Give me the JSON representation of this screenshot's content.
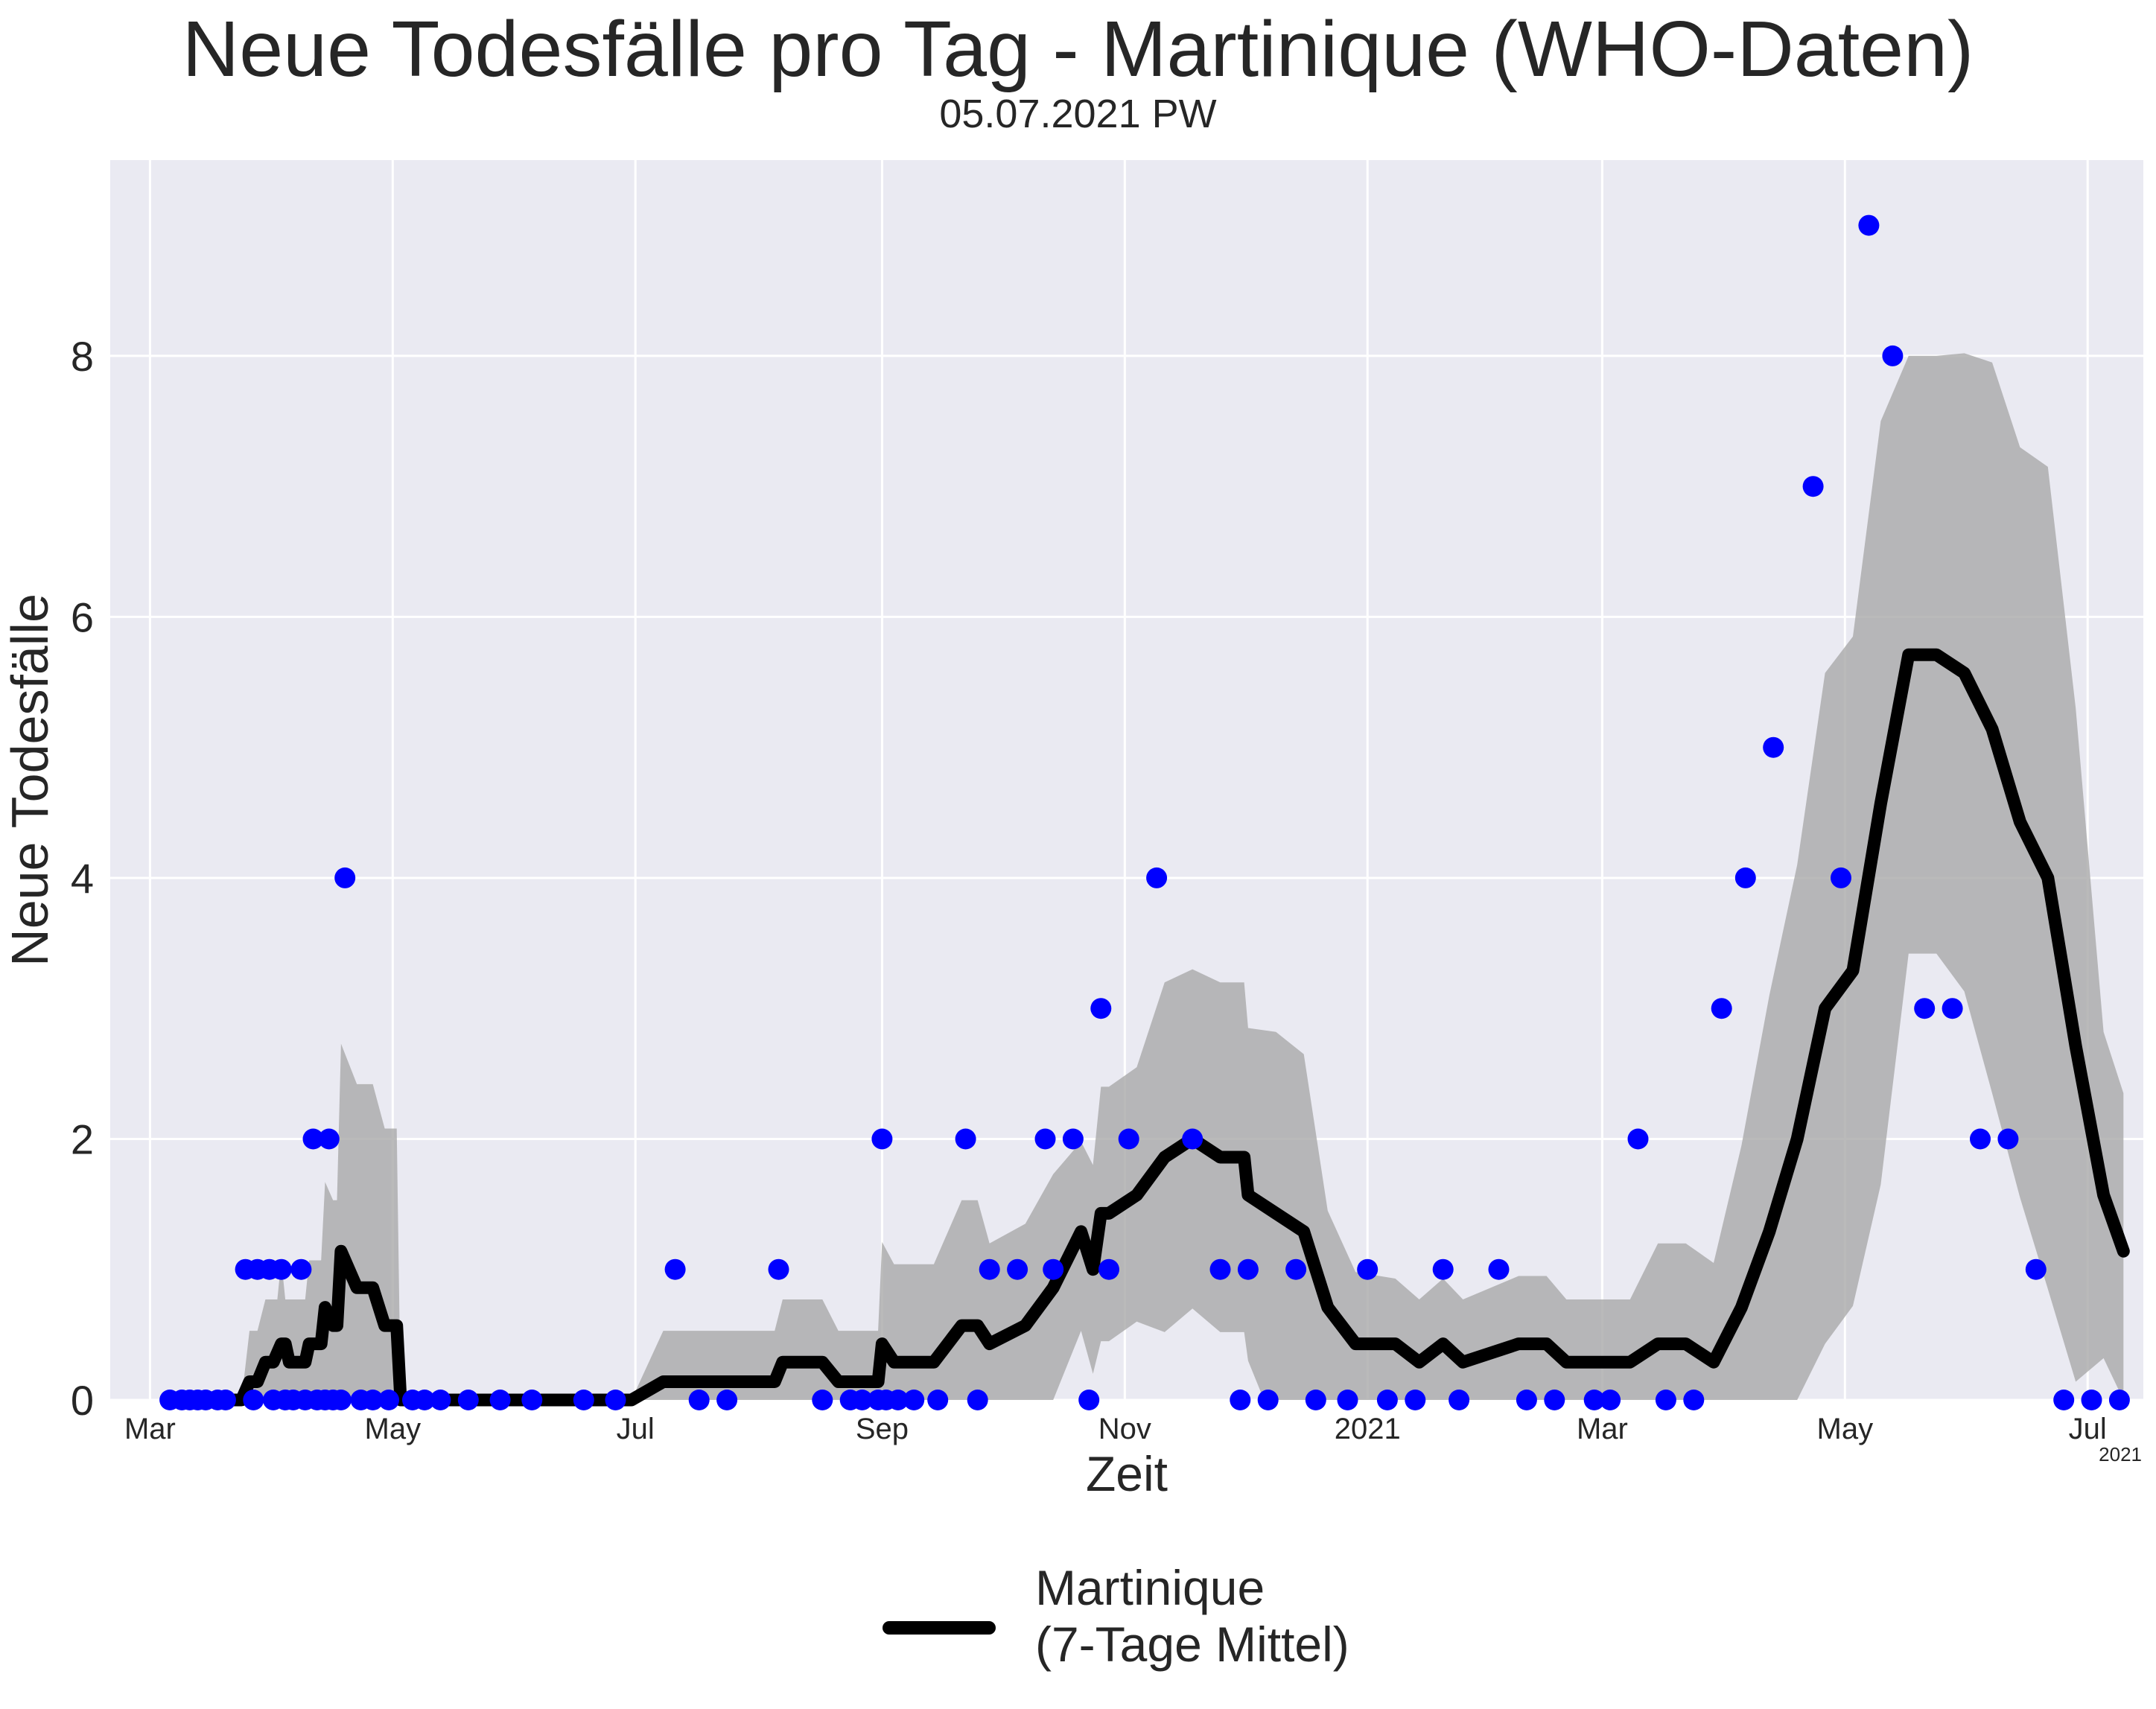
{
  "title": "Neue Todesfälle pro Tag - Martinique (WHO-Daten)",
  "subtitle": "05.07.2021 PW",
  "colors": {
    "background": "#EAEAF2",
    "grid": "#FFFFFF",
    "points": "#0000FF",
    "line": "#000000",
    "band": "#A9A9A9"
  },
  "chart_data": {
    "type": "line",
    "xlabel": "Zeit",
    "ylabel": "Neue Todesfälle",
    "corner_label": "2021",
    "x_range": [
      "2020-02-20",
      "2021-07-15"
    ],
    "ylim": [
      0,
      9.5
    ],
    "y_ticks": [
      0,
      2,
      4,
      6,
      8
    ],
    "x_ticks": [
      {
        "date": "2020-03-01",
        "label": "Mar"
      },
      {
        "date": "2020-05-01",
        "label": "May"
      },
      {
        "date": "2020-07-01",
        "label": "Jul"
      },
      {
        "date": "2020-09-01",
        "label": "Sep"
      },
      {
        "date": "2020-11-01",
        "label": "Nov"
      },
      {
        "date": "2021-01-01",
        "label": "2021"
      },
      {
        "date": "2021-03-01",
        "label": "Mar"
      },
      {
        "date": "2021-05-01",
        "label": "May"
      },
      {
        "date": "2021-07-01",
        "label": "Jul"
      }
    ],
    "grid": true,
    "legend_position": "bottom-center",
    "series": [
      {
        "name": "Martinique\n(7-Tage Mittel)",
        "kind": "line",
        "points": [
          [
            "2020-03-06",
            0
          ],
          [
            "2020-03-24",
            0
          ],
          [
            "2020-03-26",
            0.14
          ],
          [
            "2020-03-28",
            0.14
          ],
          [
            "2020-03-30",
            0.29
          ],
          [
            "2020-04-01",
            0.29
          ],
          [
            "2020-04-03",
            0.43
          ],
          [
            "2020-04-04",
            0.43
          ],
          [
            "2020-04-05",
            0.29
          ],
          [
            "2020-04-09",
            0.29
          ],
          [
            "2020-04-10",
            0.43
          ],
          [
            "2020-04-13",
            0.43
          ],
          [
            "2020-04-14",
            0.71
          ],
          [
            "2020-04-16",
            0.57
          ],
          [
            "2020-04-17",
            0.57
          ],
          [
            "2020-04-18",
            1.14
          ],
          [
            "2020-04-22",
            0.86
          ],
          [
            "2020-04-26",
            0.86
          ],
          [
            "2020-04-29",
            0.57
          ],
          [
            "2020-05-02",
            0.57
          ],
          [
            "2020-05-03",
            0
          ],
          [
            "2020-06-30",
            0
          ],
          [
            "2020-07-08",
            0.14
          ],
          [
            "2020-08-05",
            0.14
          ],
          [
            "2020-08-07",
            0.29
          ],
          [
            "2020-08-17",
            0.29
          ],
          [
            "2020-08-21",
            0.14
          ],
          [
            "2020-08-31",
            0.14
          ],
          [
            "2020-09-01",
            0.43
          ],
          [
            "2020-09-04",
            0.29
          ],
          [
            "2020-09-14",
            0.29
          ],
          [
            "2020-09-21",
            0.57
          ],
          [
            "2020-09-25",
            0.57
          ],
          [
            "2020-09-28",
            0.43
          ],
          [
            "2020-10-07",
            0.57
          ],
          [
            "2020-10-14",
            0.86
          ],
          [
            "2020-10-21",
            1.29
          ],
          [
            "2020-10-24",
            1.0
          ],
          [
            "2020-10-26",
            1.43
          ],
          [
            "2020-10-28",
            1.43
          ],
          [
            "2020-11-04",
            1.57
          ],
          [
            "2020-11-11",
            1.86
          ],
          [
            "2020-11-18",
            2.0
          ],
          [
            "2020-11-25",
            1.86
          ],
          [
            "2020-12-01",
            1.86
          ],
          [
            "2020-12-02",
            1.57
          ],
          [
            "2020-12-09",
            1.43
          ],
          [
            "2020-12-16",
            1.29
          ],
          [
            "2020-12-22",
            0.71
          ],
          [
            "2020-12-29",
            0.43
          ],
          [
            "2021-01-08",
            0.43
          ],
          [
            "2021-01-14",
            0.29
          ],
          [
            "2021-01-20",
            0.43
          ],
          [
            "2021-01-25",
            0.29
          ],
          [
            "2021-02-08",
            0.43
          ],
          [
            "2021-02-15",
            0.43
          ],
          [
            "2021-02-20",
            0.29
          ],
          [
            "2021-03-08",
            0.29
          ],
          [
            "2021-03-15",
            0.43
          ],
          [
            "2021-03-22",
            0.43
          ],
          [
            "2021-03-29",
            0.29
          ],
          [
            "2021-04-05",
            0.71
          ],
          [
            "2021-04-12",
            1.29
          ],
          [
            "2021-04-19",
            2.0
          ],
          [
            "2021-04-26",
            3.0
          ],
          [
            "2021-05-03",
            3.29
          ],
          [
            "2021-05-10",
            4.57
          ],
          [
            "2021-05-17",
            5.71
          ],
          [
            "2021-05-24",
            5.71
          ],
          [
            "2021-05-31",
            5.57
          ],
          [
            "2021-06-07",
            5.14
          ],
          [
            "2021-06-14",
            4.43
          ],
          [
            "2021-06-21",
            4.0
          ],
          [
            "2021-06-28",
            2.71
          ],
          [
            "2021-07-05",
            1.57
          ],
          [
            "2021-07-10",
            1.14
          ]
        ]
      },
      {
        "kind": "band",
        "upper": [
          [
            "2020-03-24",
            0
          ],
          [
            "2020-03-26",
            0.53
          ],
          [
            "2020-03-28",
            0.53
          ],
          [
            "2020-03-30",
            0.77
          ],
          [
            "2020-04-02",
            0.77
          ],
          [
            "2020-04-03",
            1.07
          ],
          [
            "2020-04-04",
            0.77
          ],
          [
            "2020-04-09",
            0.77
          ],
          [
            "2020-04-10",
            1.07
          ],
          [
            "2020-04-13",
            1.07
          ],
          [
            "2020-04-14",
            1.67
          ],
          [
            "2020-04-16",
            1.53
          ],
          [
            "2020-04-17",
            1.53
          ],
          [
            "2020-04-18",
            2.73
          ],
          [
            "2020-04-22",
            2.42
          ],
          [
            "2020-04-26",
            2.42
          ],
          [
            "2020-04-29",
            2.08
          ],
          [
            "2020-05-02",
            2.08
          ],
          [
            "2020-05-03",
            0
          ],
          [
            "2020-06-30",
            0
          ],
          [
            "2020-07-08",
            0.53
          ],
          [
            "2020-08-05",
            0.53
          ],
          [
            "2020-08-07",
            0.77
          ],
          [
            "2020-08-17",
            0.77
          ],
          [
            "2020-08-21",
            0.53
          ],
          [
            "2020-08-31",
            0.53
          ],
          [
            "2020-09-01",
            1.21
          ],
          [
            "2020-09-04",
            1.04
          ],
          [
            "2020-09-14",
            1.04
          ],
          [
            "2020-09-21",
            1.53
          ],
          [
            "2020-09-25",
            1.53
          ],
          [
            "2020-09-28",
            1.2
          ],
          [
            "2020-10-07",
            1.35
          ],
          [
            "2020-10-14",
            1.73
          ],
          [
            "2020-10-21",
            1.98
          ],
          [
            "2020-10-24",
            1.8
          ],
          [
            "2020-10-26",
            2.4
          ],
          [
            "2020-10-28",
            2.4
          ],
          [
            "2020-11-04",
            2.55
          ],
          [
            "2020-11-11",
            3.2
          ],
          [
            "2020-11-18",
            3.3
          ],
          [
            "2020-11-25",
            3.2
          ],
          [
            "2020-12-01",
            3.2
          ],
          [
            "2020-12-02",
            2.85
          ],
          [
            "2020-12-09",
            2.82
          ],
          [
            "2020-12-16",
            2.65
          ],
          [
            "2020-12-22",
            1.45
          ],
          [
            "2020-12-29",
            0.98
          ],
          [
            "2021-01-08",
            0.93
          ],
          [
            "2021-01-14",
            0.77
          ],
          [
            "2021-01-20",
            0.93
          ],
          [
            "2021-01-25",
            0.77
          ],
          [
            "2021-02-08",
            0.95
          ],
          [
            "2021-02-15",
            0.95
          ],
          [
            "2021-02-20",
            0.77
          ],
          [
            "2021-03-08",
            0.77
          ],
          [
            "2021-03-15",
            1.2
          ],
          [
            "2021-03-22",
            1.2
          ],
          [
            "2021-03-29",
            1.05
          ],
          [
            "2021-04-05",
            1.95
          ],
          [
            "2021-04-12",
            3.1
          ],
          [
            "2021-04-19",
            4.1
          ],
          [
            "2021-04-26",
            5.57
          ],
          [
            "2021-05-03",
            5.85
          ],
          [
            "2021-05-10",
            7.5
          ],
          [
            "2021-05-17",
            8.0
          ],
          [
            "2021-05-24",
            8.0
          ],
          [
            "2021-05-31",
            8.02
          ],
          [
            "2021-06-07",
            7.95
          ],
          [
            "2021-06-14",
            7.3
          ],
          [
            "2021-06-21",
            7.15
          ],
          [
            "2021-06-28",
            5.3
          ],
          [
            "2021-07-05",
            2.82
          ],
          [
            "2021-07-10",
            2.35
          ]
        ],
        "lower": [
          [
            "2020-03-06",
            0
          ],
          [
            "2020-10-14",
            0
          ],
          [
            "2020-10-21",
            0.53
          ],
          [
            "2020-10-24",
            0.2
          ],
          [
            "2020-10-26",
            0.45
          ],
          [
            "2020-10-28",
            0.45
          ],
          [
            "2020-11-04",
            0.6
          ],
          [
            "2020-11-11",
            0.52
          ],
          [
            "2020-11-18",
            0.7
          ],
          [
            "2020-11-25",
            0.52
          ],
          [
            "2020-12-01",
            0.52
          ],
          [
            "2020-12-02",
            0.3
          ],
          [
            "2020-12-06",
            0
          ],
          [
            "2021-04-12",
            0
          ],
          [
            "2021-04-19",
            0
          ],
          [
            "2021-04-26",
            0.43
          ],
          [
            "2021-05-03",
            0.72
          ],
          [
            "2021-05-10",
            1.65
          ],
          [
            "2021-05-17",
            3.42
          ],
          [
            "2021-05-24",
            3.42
          ],
          [
            "2021-05-31",
            3.13
          ],
          [
            "2021-06-07",
            2.35
          ],
          [
            "2021-06-14",
            1.55
          ],
          [
            "2021-06-21",
            0.85
          ],
          [
            "2021-06-28",
            0.14
          ],
          [
            "2021-07-05",
            0.32
          ],
          [
            "2021-07-10",
            0
          ]
        ]
      },
      {
        "kind": "scatter",
        "points": [
          [
            "2020-03-06",
            0
          ],
          [
            "2020-03-09",
            0
          ],
          [
            "2020-03-11",
            0
          ],
          [
            "2020-03-13",
            0
          ],
          [
            "2020-03-15",
            0
          ],
          [
            "2020-03-18",
            0
          ],
          [
            "2020-03-20",
            0
          ],
          [
            "2020-03-25",
            1
          ],
          [
            "2020-03-27",
            0
          ],
          [
            "2020-03-28",
            1
          ],
          [
            "2020-03-31",
            1
          ],
          [
            "2020-04-01",
            0
          ],
          [
            "2020-04-03",
            1
          ],
          [
            "2020-04-04",
            0
          ],
          [
            "2020-04-06",
            0
          ],
          [
            "2020-04-08",
            1
          ],
          [
            "2020-04-09",
            0
          ],
          [
            "2020-04-11",
            2
          ],
          [
            "2020-04-12",
            0
          ],
          [
            "2020-04-14",
            0
          ],
          [
            "2020-04-15",
            2
          ],
          [
            "2020-04-16",
            0
          ],
          [
            "2020-04-18",
            0
          ],
          [
            "2020-04-19",
            4
          ],
          [
            "2020-04-23",
            0
          ],
          [
            "2020-04-26",
            0
          ],
          [
            "2020-04-30",
            0
          ],
          [
            "2020-05-06",
            0
          ],
          [
            "2020-05-09",
            0
          ],
          [
            "2020-05-13",
            0
          ],
          [
            "2020-05-20",
            0
          ],
          [
            "2020-05-28",
            0
          ],
          [
            "2020-06-05",
            0
          ],
          [
            "2020-06-18",
            0
          ],
          [
            "2020-06-26",
            0
          ],
          [
            "2020-07-11",
            1
          ],
          [
            "2020-07-17",
            0
          ],
          [
            "2020-07-24",
            0
          ],
          [
            "2020-08-06",
            1
          ],
          [
            "2020-08-17",
            0
          ],
          [
            "2020-08-24",
            0
          ],
          [
            "2020-08-27",
            0
          ],
          [
            "2020-08-31",
            0
          ],
          [
            "2020-09-01",
            2
          ],
          [
            "2020-09-02",
            0
          ],
          [
            "2020-09-05",
            0
          ],
          [
            "2020-09-09",
            0
          ],
          [
            "2020-09-15",
            0
          ],
          [
            "2020-09-22",
            2
          ],
          [
            "2020-09-25",
            0
          ],
          [
            "2020-09-28",
            1
          ],
          [
            "2020-10-05",
            1
          ],
          [
            "2020-10-12",
            2
          ],
          [
            "2020-10-14",
            1
          ],
          [
            "2020-10-19",
            2
          ],
          [
            "2020-10-23",
            0
          ],
          [
            "2020-10-26",
            3
          ],
          [
            "2020-10-28",
            1
          ],
          [
            "2020-11-02",
            2
          ],
          [
            "2020-11-09",
            4
          ],
          [
            "2020-11-18",
            2
          ],
          [
            "2020-11-25",
            1
          ],
          [
            "2020-11-30",
            0
          ],
          [
            "2020-12-02",
            1
          ],
          [
            "2020-12-07",
            0
          ],
          [
            "2020-12-14",
            1
          ],
          [
            "2020-12-19",
            0
          ],
          [
            "2020-12-27",
            0
          ],
          [
            "2021-01-01",
            1
          ],
          [
            "2021-01-06",
            0
          ],
          [
            "2021-01-13",
            0
          ],
          [
            "2021-01-20",
            1
          ],
          [
            "2021-01-24",
            0
          ],
          [
            "2021-02-03",
            1
          ],
          [
            "2021-02-10",
            0
          ],
          [
            "2021-02-17",
            0
          ],
          [
            "2021-02-27",
            0
          ],
          [
            "2021-03-03",
            0
          ],
          [
            "2021-03-10",
            2
          ],
          [
            "2021-03-17",
            0
          ],
          [
            "2021-03-24",
            0
          ],
          [
            "2021-03-31",
            3
          ],
          [
            "2021-04-06",
            4
          ],
          [
            "2021-04-13",
            5
          ],
          [
            "2021-04-23",
            7
          ],
          [
            "2021-04-30",
            4
          ],
          [
            "2021-05-07",
            9
          ],
          [
            "2021-05-13",
            8
          ],
          [
            "2021-05-21",
            3
          ],
          [
            "2021-05-28",
            3
          ],
          [
            "2021-06-04",
            2
          ],
          [
            "2021-06-11",
            2
          ],
          [
            "2021-06-18",
            1
          ],
          [
            "2021-06-25",
            0
          ],
          [
            "2021-07-02",
            0
          ],
          [
            "2021-07-09",
            0
          ]
        ]
      }
    ]
  }
}
